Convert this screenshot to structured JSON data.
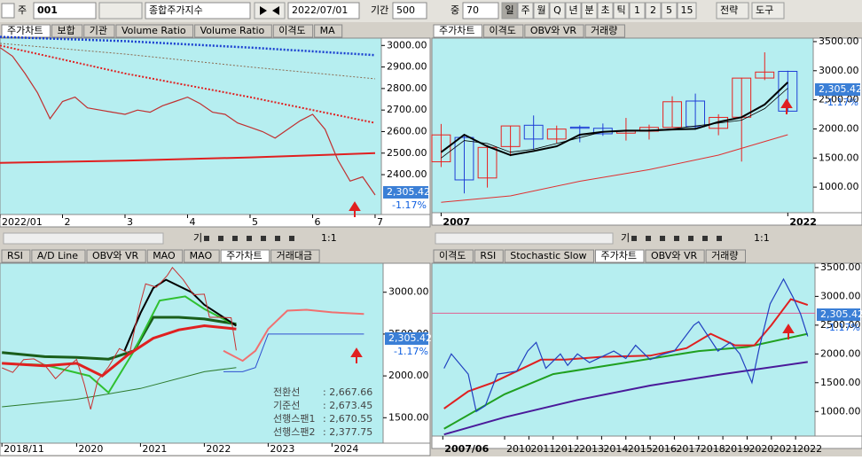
{
  "toolbar": {
    "prefix": "주",
    "code": "001",
    "name": "종합주가지수",
    "date": "2022/07/01",
    "period_label": "기간",
    "period": 500,
    "mid_label": "중",
    "mid": 70,
    "intervals": [
      "일",
      "주",
      "월",
      "Q",
      "년",
      "분",
      "초",
      "틱",
      "1",
      "2",
      "5",
      "15"
    ],
    "menu": [
      "전략",
      "도구"
    ]
  },
  "scroll_bar": {
    "label": "기",
    "zoom": "1:1"
  },
  "chart_data": [
    {
      "type": "line",
      "tabs": [
        "주가차트",
        "보합",
        "기관",
        "Volume Ratio",
        "Volume Ratio",
        "이격도",
        "MA"
      ],
      "active_tab": 0,
      "xlim": [
        1,
        7.1
      ],
      "xticks": [
        {
          "value": 1,
          "label": "2022/01"
        },
        2,
        3,
        4,
        5,
        6,
        7
      ],
      "ylim": [
        2215,
        3030
      ],
      "yticks": [
        {
          "value": 3000,
          "label": "3000.00"
        },
        {
          "value": 2900,
          "label": "2900.00"
        },
        {
          "value": 2800,
          "label": "2800.00"
        },
        {
          "value": 2700,
          "label": "2700.00"
        },
        {
          "value": 2600,
          "label": "2600.00"
        },
        {
          "value": 2500,
          "label": "2500.00"
        },
        {
          "value": 2400,
          "label": "2400.00"
        }
      ],
      "price_label": "2,305.42",
      "change_label": "-1.17%",
      "series": [
        {
          "color": "#1a3fd0",
          "width": 2.5,
          "dashed": true,
          "x": [
            1,
            3,
            5,
            7
          ],
          "values": [
            3040,
            3020,
            2990,
            2955
          ]
        },
        {
          "color": "#8b6a50",
          "width": 1,
          "dashed": true,
          "x": [
            1,
            3,
            5,
            7
          ],
          "values": [
            3010,
            2960,
            2900,
            2845
          ]
        },
        {
          "color": "#e02020",
          "width": 2,
          "dashed": true,
          "x": [
            1,
            3,
            5,
            7
          ],
          "values": [
            3000,
            2870,
            2760,
            2640
          ]
        },
        {
          "color": "#e02020",
          "width": 2,
          "x": [
            1,
            3,
            5,
            7
          ],
          "values": [
            2455,
            2465,
            2480,
            2500
          ]
        },
        {
          "color": "#c03030",
          "width": 1.2,
          "x": [
            1,
            1.2,
            1.4,
            1.6,
            1.8,
            2,
            2.2,
            2.4,
            2.6,
            2.8,
            3,
            3.2,
            3.4,
            3.6,
            3.8,
            4,
            4.2,
            4.4,
            4.6,
            4.8,
            5,
            5.2,
            5.4,
            5.6,
            5.8,
            6,
            6.2,
            6.4,
            6.6,
            6.8,
            7
          ],
          "values": [
            2990,
            2950,
            2870,
            2780,
            2660,
            2740,
            2760,
            2710,
            2700,
            2690,
            2680,
            2700,
            2690,
            2720,
            2740,
            2760,
            2730,
            2690,
            2680,
            2640,
            2620,
            2600,
            2570,
            2610,
            2650,
            2680,
            2610,
            2470,
            2370,
            2390,
            2305.42
          ]
        }
      ]
    },
    {
      "type": "candlestick",
      "tabs": [
        "주가차트",
        "이격도",
        "OBV와 VR",
        "거래량"
      ],
      "active_tab": 0,
      "xlim": [
        2006.6,
        2023.1
      ],
      "xticks": [
        2007,
        2022
      ],
      "ylim": [
        560,
        3545
      ],
      "yticks": [
        {
          "value": 3500,
          "label": "3500.00"
        },
        {
          "value": 3000,
          "label": "3000.00"
        },
        {
          "value": 2500,
          "label": "2500.00"
        },
        {
          "value": 2000,
          "label": "2000.00"
        },
        {
          "value": 1500,
          "label": "1500.00"
        },
        {
          "value": 1000,
          "label": "1000.00"
        }
      ],
      "price_label": "2,305.42",
      "change_label": "-1.17%",
      "up_color": "#e8211e",
      "down_color": "#1f3fd6",
      "x": [
        2007,
        2008,
        2009,
        2010,
        2011,
        2012,
        2013,
        2014,
        2015,
        2016,
        2017,
        2018,
        2019,
        2020,
        2021,
        2022
      ],
      "open": [
        1435,
        1853,
        1157,
        1697,
        2063,
        1826,
        2031,
        2011,
        1927,
        1961,
        2026,
        2479,
        2010,
        2201,
        2874,
        2989
      ],
      "high": [
        2085,
        1901,
        1723,
        2052,
        2231,
        2057,
        2063,
        2093,
        2189,
        2073,
        2561,
        2607,
        2252,
        2878,
        3316,
        3000
      ],
      "low": [
        1345,
        892,
        992,
        1532,
        1644,
        1758,
        1770,
        1881,
        1800,
        1817,
        2026,
        1985,
        1891,
        1439,
        2839,
        2291
      ],
      "close": [
        1897,
        1124,
        1682,
        2051,
        1826,
        1997,
        2011,
        1916,
        1961,
        2026,
        2467,
        2041,
        2198,
        2873,
        2977,
        2305
      ],
      "series": [
        {
          "color": "#000000",
          "width": 2,
          "x": [
            2007,
            2008,
            2009,
            2010,
            2011,
            2012,
            2013,
            2014,
            2015,
            2016,
            2017,
            2018,
            2019,
            2020,
            2021,
            2022
          ],
          "values": [
            1600,
            1900,
            1700,
            1550,
            1620,
            1700,
            1900,
            1950,
            1970,
            1970,
            1990,
            2000,
            2120,
            2200,
            2420,
            2800
          ]
        },
        {
          "color": "#000000",
          "width": 0.8,
          "x": [
            2007,
            2008,
            2009,
            2010,
            2011,
            2012,
            2013,
            2014,
            2015,
            2016,
            2017,
            2018,
            2019,
            2020,
            2021,
            2022
          ],
          "values": [
            1500,
            1800,
            1750,
            1600,
            1650,
            1750,
            1850,
            1950,
            1960,
            1980,
            2000,
            2050,
            2100,
            2150,
            2350,
            2700
          ]
        },
        {
          "color": "#e03030",
          "width": 1,
          "x": [
            2007,
            2010,
            2013,
            2016,
            2019,
            2022
          ],
          "values": [
            740,
            850,
            1100,
            1300,
            1550,
            1900
          ]
        }
      ]
    },
    {
      "type": "line",
      "tabs": [
        "RSI",
        "A/D Line",
        "OBV와 VR",
        "MAO",
        "MAO",
        "주가차트",
        "거래대금"
      ],
      "active_tab": 5,
      "xlim": [
        2018.8,
        2024.8
      ],
      "xticks": [
        {
          "value": 2018.83,
          "label": "2018/11"
        },
        2020,
        2021,
        2022,
        2023,
        2024
      ],
      "ylim": [
        1196,
        3336
      ],
      "yticks": [
        {
          "value": 3000,
          "label": "3000.00"
        },
        {
          "value": 2500,
          "label": "2500.00"
        },
        {
          "value": 2000,
          "label": "2000.00"
        },
        {
          "value": 1500,
          "label": "1500.00"
        }
      ],
      "price_label": "2,305.42",
      "change_label": "-1.17%",
      "legend": [
        {
          "name": "전환선",
          "value": 2667.66,
          "value_label": ": 2,667.66"
        },
        {
          "name": "기준선",
          "value": 2673.45,
          "value_label": ": 2,673.45"
        },
        {
          "name": "선행스팬1",
          "value": 2670.55,
          "value_label": ": 2,670.55"
        },
        {
          "name": "선행스팬2",
          "value": 2377.75,
          "value_label": ": 2,377.75"
        }
      ],
      "series": [
        {
          "color": "#2c7a2c",
          "width": 1,
          "x": [
            2018.83,
            2020,
            2021,
            2022,
            2022.5
          ],
          "values": [
            1630,
            1720,
            1850,
            2050,
            2100
          ]
        },
        {
          "color": "#f07070",
          "width": 2,
          "x": [
            2022.3,
            2022.6,
            2022.8,
            2023,
            2023.3,
            2023.6,
            2024,
            2024.5
          ],
          "values": [
            2300,
            2180,
            2300,
            2560,
            2780,
            2790,
            2760,
            2740
          ]
        },
        {
          "color": "#3050d0",
          "width": 1,
          "x": [
            2022.3,
            2022.6,
            2022.8,
            2023,
            2024.5
          ],
          "values": [
            2050,
            2050,
            2100,
            2500,
            2500
          ]
        },
        {
          "color": "#1a5e1a",
          "width": 3,
          "x": [
            2018.83,
            2019.5,
            2020,
            2020.5,
            2020.9,
            2021.2,
            2021.6,
            2022,
            2022.5
          ],
          "values": [
            2280,
            2230,
            2220,
            2200,
            2300,
            2700,
            2700,
            2680,
            2620
          ]
        },
        {
          "color": "#30c030",
          "width": 2,
          "x": [
            2018.83,
            2019.5,
            2020.2,
            2020.5,
            2020.9,
            2021.3,
            2021.7,
            2022,
            2022.5
          ],
          "values": [
            2150,
            2130,
            2000,
            1800,
            2300,
            2900,
            2950,
            2800,
            2600
          ]
        },
        {
          "color": "#e02020",
          "width": 3,
          "x": [
            2018.83,
            2019.5,
            2020,
            2020.4,
            2020.8,
            2021.2,
            2021.6,
            2022,
            2022.5
          ],
          "values": [
            2150,
            2120,
            2150,
            2000,
            2250,
            2450,
            2550,
            2600,
            2560
          ]
        },
        {
          "color": "#000000",
          "width": 2,
          "x": [
            2020.75,
            2021,
            2021.2,
            2021.4,
            2021.8,
            2022,
            2022.3,
            2022.5
          ],
          "values": [
            2300,
            2750,
            3050,
            3150,
            3000,
            2850,
            2700,
            2600
          ]
        },
        {
          "color": "#c83030",
          "width": 1,
          "x": [
            2018.83,
            2019,
            2019.17,
            2019.33,
            2019.5,
            2019.67,
            2019.83,
            2020,
            2020.12,
            2020.22,
            2020.33,
            2020.5,
            2020.67,
            2020.83,
            2020.92,
            2021,
            2021.08,
            2021.25,
            2021.42,
            2021.5,
            2021.67,
            2021.83,
            2022,
            2022.08,
            2022.25,
            2022.42,
            2022.5
          ],
          "values": [
            2096,
            2041,
            2195,
            2203,
            2130,
            1967,
            2087,
            2197,
            1900,
            1600,
            1947,
            2108,
            2326,
            2267,
            2600,
            2873,
            3100,
            3061,
            3200,
            3296,
            3150,
            2970,
            2977,
            2700,
            2700,
            2695,
            2305
          ]
        }
      ]
    },
    {
      "type": "line",
      "tabs": [
        "이격도",
        "RSI",
        "Stochastic Slow",
        "주가차트",
        "OBV와 VR",
        "거래량"
      ],
      "active_tab": 3,
      "xlim": [
        2007,
        2022.8
      ],
      "xticks": [
        {
          "value": 2007.45,
          "label": "2007/06"
        },
        2010,
        2011,
        2012,
        2013,
        2014,
        2015,
        2016,
        2017,
        2018,
        2019,
        2020,
        2021,
        2022
      ],
      "ylim": [
        573,
        3591
      ],
      "yticks": [
        {
          "value": 3500,
          "label": "3500.00"
        },
        {
          "value": 3000,
          "label": "3000.00"
        },
        {
          "value": 2500,
          "label": "2500.00"
        },
        {
          "value": 2000,
          "label": "2000.00"
        },
        {
          "value": 1500,
          "label": "1500.00"
        },
        {
          "value": 1000,
          "label": "1000.00"
        }
      ],
      "price_label": "2,305.42",
      "change_label": "-1.17%",
      "hline": 2707,
      "hline_color": "#e06090",
      "series": [
        {
          "color": "#4a1a9a",
          "width": 2,
          "x": [
            2007.5,
            2010,
            2013,
            2016,
            2019,
            2022.5
          ],
          "values": [
            600,
            900,
            1200,
            1450,
            1650,
            1860
          ]
        },
        {
          "color": "#20a020",
          "width": 2,
          "x": [
            2007.5,
            2010,
            2012,
            2015,
            2018,
            2020,
            2022.5
          ],
          "values": [
            700,
            1300,
            1650,
            1850,
            2050,
            2120,
            2350
          ]
        },
        {
          "color": "#e02020",
          "width": 2,
          "x": [
            2007.5,
            2008.5,
            2009.5,
            2010.5,
            2011.5,
            2012.5,
            2014,
            2016,
            2017.5,
            2018.5,
            2019.5,
            2020.3,
            2021,
            2021.8,
            2022.5
          ],
          "values": [
            1050,
            1350,
            1500,
            1700,
            1900,
            1900,
            1950,
            1970,
            2100,
            2350,
            2150,
            2150,
            2500,
            2950,
            2850
          ]
        },
        {
          "color": "#2040c0",
          "width": 1.2,
          "x": [
            2007.5,
            2007.8,
            2008.5,
            2008.83,
            2009.2,
            2009.7,
            2010.5,
            2010.95,
            2011.3,
            2011.7,
            2012.3,
            2012.6,
            2013,
            2013.5,
            2014,
            2014.5,
            2015,
            2015.4,
            2016,
            2016.5,
            2017,
            2017.8,
            2018,
            2018.8,
            2019.3,
            2019.7,
            2020.2,
            2020.5,
            2020.95,
            2021.5,
            2021.9,
            2022.2,
            2022.5
          ],
          "values": [
            1750,
            2000,
            1650,
            1000,
            1100,
            1650,
            1700,
            2050,
            2200,
            1750,
            2000,
            1800,
            2000,
            1850,
            1950,
            2050,
            1920,
            2150,
            1900,
            1990,
            2050,
            2500,
            2560,
            2050,
            2200,
            2000,
            1500,
            2100,
            2870,
            3300,
            2980,
            2700,
            2305
          ]
        }
      ]
    }
  ]
}
